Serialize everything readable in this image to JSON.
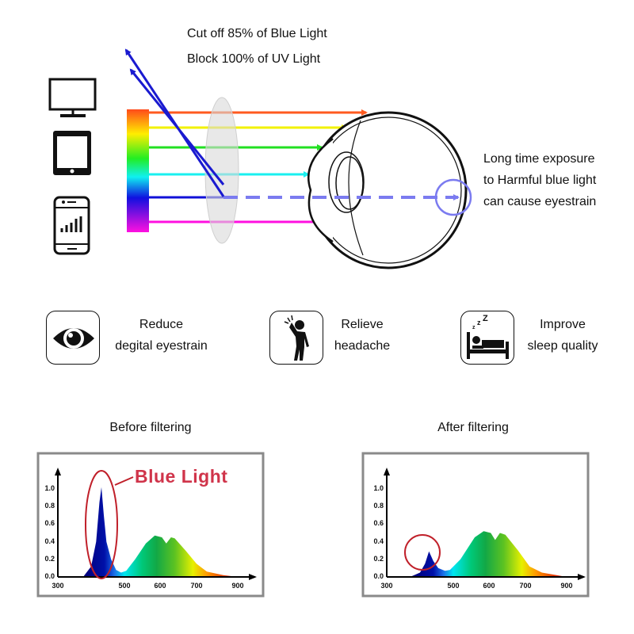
{
  "callouts": {
    "cut_off": "Cut off 85% of Blue Light",
    "block_uv": "Block 100% of UV Light"
  },
  "warning": {
    "line1": "Long time exposure",
    "line2": "to Harmful blue light",
    "line3": "can cause eyestrain"
  },
  "devices": [
    "monitor-icon",
    "tablet-icon",
    "smartphone-icon"
  ],
  "colors": {
    "blocked_ray": "#1a1ad0",
    "filtered_ray_dashed": "#7b7bf0",
    "highlight_red": "#c0202a",
    "blue_light_label": "#d0344a",
    "rays": [
      "#ff5a1f",
      "#f2f200",
      "#22e022",
      "#19f0f0",
      "#1010d8",
      "#ff10e0"
    ]
  },
  "benefits": [
    {
      "icon": "eye-icon",
      "line1": "Reduce",
      "line2": "degital eyestrain"
    },
    {
      "icon": "headache-person-icon",
      "line1": "Relieve",
      "line2": "headache"
    },
    {
      "icon": "sleeping-in-bed-icon",
      "line1": "Improve",
      "line2": "sleep quality"
    }
  ],
  "chart_data": [
    {
      "type": "area",
      "title": "Before filtering",
      "annotation": "Blue Light",
      "x_ticks": [
        "300",
        "500",
        "600",
        "700",
        "900"
      ],
      "y_ticks": [
        "0.0",
        "0.2",
        "0.4",
        "0.6",
        "0.8",
        "1.0"
      ],
      "ylim": [
        0,
        1.0
      ],
      "points": [
        [
          376,
          0
        ],
        [
          400,
          0.12
        ],
        [
          415,
          0.4
        ],
        [
          425,
          0.85
        ],
        [
          431,
          1.02
        ],
        [
          438,
          0.7
        ],
        [
          446,
          0.4
        ],
        [
          460,
          0.2
        ],
        [
          475,
          0.08
        ],
        [
          490,
          0.05
        ],
        [
          505,
          0.07
        ],
        [
          530,
          0.2
        ],
        [
          560,
          0.38
        ],
        [
          585,
          0.47
        ],
        [
          605,
          0.45
        ],
        [
          617,
          0.38
        ],
        [
          630,
          0.45
        ],
        [
          640,
          0.44
        ],
        [
          670,
          0.3
        ],
        [
          700,
          0.15
        ],
        [
          750,
          0.06
        ],
        [
          830,
          0.02
        ],
        [
          900,
          0
        ]
      ]
    },
    {
      "type": "area",
      "title": "After filtering",
      "x_ticks": [
        "300",
        "500",
        "600",
        "700",
        "900"
      ],
      "y_ticks": [
        "0.0",
        "0.2",
        "0.4",
        "0.6",
        "0.8",
        "1.0"
      ],
      "ylim": [
        0,
        1.0
      ],
      "points": [
        [
          370,
          0
        ],
        [
          400,
          0.05
        ],
        [
          415,
          0.15
        ],
        [
          427,
          0.29
        ],
        [
          440,
          0.18
        ],
        [
          455,
          0.1
        ],
        [
          475,
          0.07
        ],
        [
          490,
          0.08
        ],
        [
          520,
          0.2
        ],
        [
          560,
          0.45
        ],
        [
          585,
          0.52
        ],
        [
          605,
          0.5
        ],
        [
          617,
          0.42
        ],
        [
          630,
          0.5
        ],
        [
          645,
          0.48
        ],
        [
          680,
          0.3
        ],
        [
          720,
          0.12
        ],
        [
          780,
          0.05
        ],
        [
          900,
          0
        ]
      ]
    }
  ]
}
